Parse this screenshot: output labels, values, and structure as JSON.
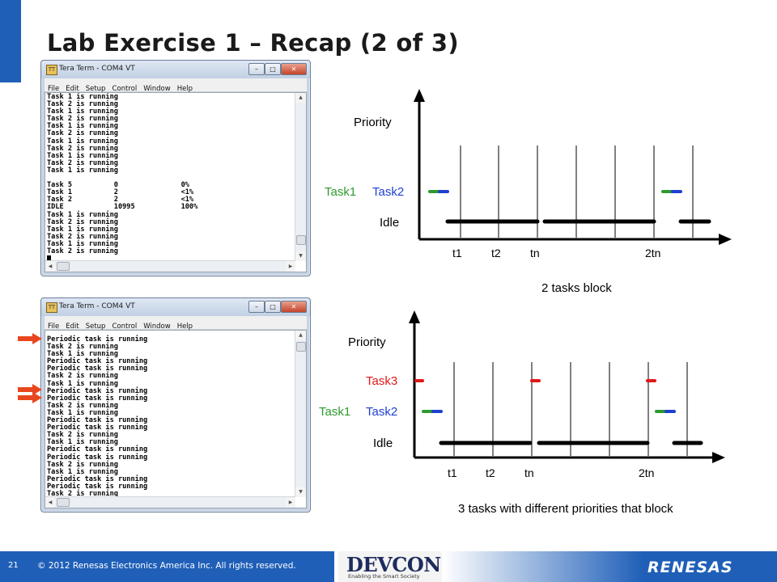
{
  "slide": {
    "title": "Lab Exercise 1 – Recap (2 of 3)",
    "page_number": "21",
    "copyright": "© 2012 Renesas Electronics America Inc. All rights reserved.",
    "footer_logo": "DEVCON",
    "footer_tagline": "Enabling the Smart Society",
    "company_logo": "RENESAS",
    "colors": {
      "accent_blue": "#1f5fb8",
      "task1_green": "#2e9a2e",
      "task2_blue": "#1f3fd0",
      "task3_red": "#e01818",
      "arrow_red": "#e8461e"
    }
  },
  "window1": {
    "title": "Tera Term - COM4 VT",
    "menu": [
      "File",
      "Edit",
      "Setup",
      "Control",
      "Window",
      "Help"
    ],
    "lines": [
      "Task 1 is running",
      "Task 2 is running",
      "Task 1 is running",
      "Task 2 is running",
      "Task 1 is running",
      "Task 2 is running",
      "Task 1 is running",
      "Task 2 is running",
      "Task 1 is running",
      "Task 2 is running",
      "Task 1 is running",
      "",
      "Task 5          0               0%",
      "Task 1          2               <1%",
      "Task 2          2               <1%",
      "IDLE            10995           100%",
      "Task 1 is running",
      "Task 2 is running",
      "Task 1 is running",
      "Task 2 is running",
      "Task 1 is running",
      "Task 2 is running"
    ]
  },
  "window2": {
    "title": "Tera Term - COM4 VT",
    "menu": [
      "File",
      "Edit",
      "Setup",
      "Control",
      "Window",
      "Help"
    ],
    "lines": [
      "Periodic task is running",
      "Task 2 is running",
      "Task 1 is running",
      "Periodic task is running",
      "Periodic task is running",
      "Task 2 is running",
      "Task 1 is running",
      "Periodic task is running",
      "Periodic task is running",
      "Task 2 is running",
      "Task 1 is running",
      "Periodic task is running",
      "Periodic task is running",
      "Task 2 is running",
      "Task 1 is running",
      "Periodic task is running",
      "Periodic task is running",
      "Task 2 is running",
      "Task 1 is running",
      "Periodic task is running",
      "Periodic task is running",
      "Task 2 is running"
    ]
  },
  "diagram1": {
    "y_label": "Priority",
    "task1_label": "Task1",
    "task2_label": "Task2",
    "idle_label": "Idle",
    "ticks": [
      "t1",
      "t2",
      "tn",
      "2tn"
    ],
    "caption": "2 tasks block"
  },
  "diagram2": {
    "y_label": "Priority",
    "task3_label": "Task3",
    "task1_label": "Task1",
    "task2_label": "Task2",
    "idle_label": "Idle",
    "ticks": [
      "t1",
      "t2",
      "tn",
      "2tn"
    ],
    "caption": "3 tasks with different priorities that block"
  }
}
